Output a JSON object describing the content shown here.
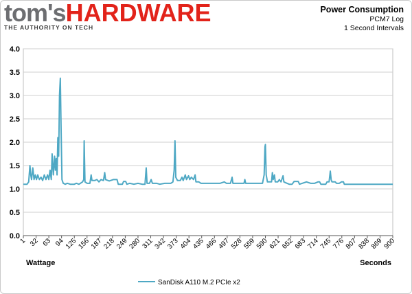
{
  "brand": {
    "name_part1": "tom's",
    "name_part2": "HARDWARE",
    "tagline": "THE AUTHORITY ON TECH"
  },
  "title": {
    "main": "Power Consumption",
    "line2": "PCM7  Log",
    "line3": "1 Second Intervals"
  },
  "colors": {
    "series": "#4ea8c4",
    "gridline": "#cfcfcf",
    "brand_red": "#e2231a",
    "brand_gray": "#6d6e71"
  },
  "chart_data": {
    "type": "line",
    "xlabel": "Wattage",
    "x_unit_label": "Seconds",
    "ylim": [
      0,
      4
    ],
    "y_ticks": [
      "0.0",
      "0.5",
      "1.0",
      "1.5",
      "2.0",
      "2.5",
      "3.0",
      "3.5",
      "4.0"
    ],
    "xlim": [
      1,
      900
    ],
    "x_ticks": [
      "1",
      "32",
      "63",
      "94",
      "125",
      "156",
      "187",
      "218",
      "249",
      "280",
      "311",
      "342",
      "373",
      "404",
      "435",
      "466",
      "497",
      "528",
      "559",
      "590",
      "621",
      "652",
      "683",
      "714",
      "745",
      "776",
      "807",
      "838",
      "869",
      "900"
    ],
    "grid": true,
    "legend_position": "bottom-center",
    "series": [
      {
        "name": "SanDisk A110 M.2 PCIe x2",
        "points": [
          [
            1,
            1.1
          ],
          [
            10,
            1.1
          ],
          [
            14,
            1.15
          ],
          [
            17,
            1.5
          ],
          [
            19,
            1.3
          ],
          [
            21,
            1.2
          ],
          [
            24,
            1.45
          ],
          [
            27,
            1.2
          ],
          [
            30,
            1.3
          ],
          [
            33,
            1.2
          ],
          [
            36,
            1.3
          ],
          [
            40,
            1.2
          ],
          [
            44,
            1.25
          ],
          [
            48,
            1.18
          ],
          [
            52,
            1.3
          ],
          [
            56,
            1.2
          ],
          [
            60,
            1.3
          ],
          [
            63,
            1.2
          ],
          [
            66,
            1.4
          ],
          [
            69,
            1.2
          ],
          [
            71,
            1.75
          ],
          [
            74,
            1.3
          ],
          [
            77,
            1.7
          ],
          [
            79,
            1.4
          ],
          [
            81,
            1.65
          ],
          [
            83,
            1.3
          ],
          [
            85,
            2.1
          ],
          [
            87,
            1.7
          ],
          [
            89,
            3.0
          ],
          [
            91,
            3.37
          ],
          [
            93,
            2.2
          ],
          [
            95,
            1.2
          ],
          [
            98,
            1.12
          ],
          [
            103,
            1.1
          ],
          [
            108,
            1.12
          ],
          [
            115,
            1.1
          ],
          [
            125,
            1.1
          ],
          [
            130,
            1.12
          ],
          [
            136,
            1.1
          ],
          [
            140,
            1.12
          ],
          [
            145,
            1.15
          ],
          [
            148,
            1.2
          ],
          [
            149,
            2.03
          ],
          [
            151,
            1.15
          ],
          [
            156,
            1.12
          ],
          [
            163,
            1.12
          ],
          [
            166,
            1.3
          ],
          [
            168,
            1.18
          ],
          [
            175,
            1.18
          ],
          [
            180,
            1.2
          ],
          [
            185,
            1.15
          ],
          [
            190,
            1.2
          ],
          [
            196,
            1.18
          ],
          [
            199,
            1.35
          ],
          [
            201,
            1.2
          ],
          [
            210,
            1.17
          ],
          [
            220,
            1.2
          ],
          [
            229,
            1.2
          ],
          [
            232,
            1.1
          ],
          [
            242,
            1.1
          ],
          [
            245,
            1.16
          ],
          [
            250,
            1.16
          ],
          [
            253,
            1.1
          ],
          [
            260,
            1.12
          ],
          [
            270,
            1.1
          ],
          [
            280,
            1.12
          ],
          [
            290,
            1.1
          ],
          [
            297,
            1.1
          ],
          [
            300,
            1.45
          ],
          [
            302,
            1.12
          ],
          [
            308,
            1.12
          ],
          [
            312,
            1.2
          ],
          [
            315,
            1.12
          ],
          [
            325,
            1.12
          ],
          [
            333,
            1.1
          ],
          [
            345,
            1.12
          ],
          [
            360,
            1.12
          ],
          [
            365,
            1.15
          ],
          [
            368,
            1.4
          ],
          [
            370,
            2.03
          ],
          [
            372,
            1.25
          ],
          [
            376,
            1.18
          ],
          [
            383,
            1.18
          ],
          [
            387,
            1.25
          ],
          [
            390,
            1.18
          ],
          [
            395,
            1.3
          ],
          [
            398,
            1.2
          ],
          [
            403,
            1.28
          ],
          [
            406,
            1.2
          ],
          [
            410,
            1.25
          ],
          [
            415,
            1.2
          ],
          [
            419,
            1.3
          ],
          [
            421,
            1.15
          ],
          [
            428,
            1.15
          ],
          [
            433,
            1.12
          ],
          [
            440,
            1.12
          ],
          [
            450,
            1.12
          ],
          [
            470,
            1.12
          ],
          [
            480,
            1.12
          ],
          [
            490,
            1.15
          ],
          [
            495,
            1.12
          ],
          [
            505,
            1.12
          ],
          [
            509,
            1.25
          ],
          [
            511,
            1.12
          ],
          [
            530,
            1.12
          ],
          [
            538,
            1.12
          ],
          [
            540,
            1.2
          ],
          [
            542,
            1.12
          ],
          [
            560,
            1.12
          ],
          [
            575,
            1.12
          ],
          [
            583,
            1.12
          ],
          [
            587,
            1.3
          ],
          [
            589,
            1.9
          ],
          [
            590,
            1.95
          ],
          [
            592,
            1.3
          ],
          [
            595,
            1.15
          ],
          [
            605,
            1.15
          ],
          [
            607,
            1.35
          ],
          [
            609,
            1.2
          ],
          [
            612,
            1.3
          ],
          [
            614,
            1.15
          ],
          [
            620,
            1.15
          ],
          [
            624,
            1.2
          ],
          [
            628,
            1.15
          ],
          [
            633,
            1.28
          ],
          [
            635,
            1.15
          ],
          [
            640,
            1.13
          ],
          [
            648,
            1.1
          ],
          [
            655,
            1.1
          ],
          [
            660,
            1.16
          ],
          [
            670,
            1.16
          ],
          [
            673,
            1.1
          ],
          [
            680,
            1.12
          ],
          [
            690,
            1.15
          ],
          [
            700,
            1.12
          ],
          [
            710,
            1.12
          ],
          [
            718,
            1.15
          ],
          [
            722,
            1.15
          ],
          [
            725,
            1.1
          ],
          [
            737,
            1.1
          ],
          [
            740,
            1.15
          ],
          [
            745,
            1.15
          ],
          [
            748,
            1.38
          ],
          [
            750,
            1.2
          ],
          [
            752,
            1.15
          ],
          [
            760,
            1.15
          ],
          [
            763,
            1.12
          ],
          [
            770,
            1.12
          ],
          [
            775,
            1.15
          ],
          [
            780,
            1.15
          ],
          [
            782,
            1.1
          ],
          [
            800,
            1.1
          ],
          [
            830,
            1.1
          ],
          [
            860,
            1.1
          ],
          [
            900,
            1.1
          ]
        ]
      }
    ]
  }
}
